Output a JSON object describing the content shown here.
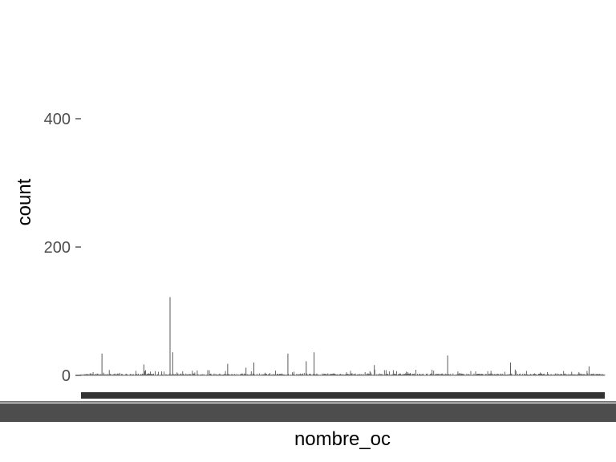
{
  "chart_data": {
    "type": "bar",
    "xlabel": "nombre_oc",
    "ylabel": "count",
    "ylim": [
      0,
      600
    ],
    "y_ticks": [
      0,
      200,
      400
    ],
    "grid": false,
    "panel_background": "#ffffff",
    "bar_color": "#595959",
    "x_axis_category_labels": "overlapping dense text rendered as a solid dark band",
    "x_axis_label_band_color": "#333333",
    "x_values_note": "over 600 categories; individual names are unreadable",
    "highlighted_bars": [
      {
        "position": 0.17,
        "value": 122
      },
      {
        "position": 0.175,
        "value": 36
      },
      {
        "position": 0.04,
        "value": 34
      },
      {
        "position": 0.395,
        "value": 34
      },
      {
        "position": 0.445,
        "value": 36
      },
      {
        "position": 0.7,
        "value": 31
      },
      {
        "position": 0.43,
        "value": 22
      },
      {
        "position": 0.33,
        "value": 20
      },
      {
        "position": 0.28,
        "value": 18
      },
      {
        "position": 0.12,
        "value": 17
      },
      {
        "position": 0.56,
        "value": 16
      },
      {
        "position": 0.82,
        "value": 20
      },
      {
        "position": 0.97,
        "value": 14
      },
      {
        "position": 0.315,
        "value": 12
      }
    ]
  }
}
